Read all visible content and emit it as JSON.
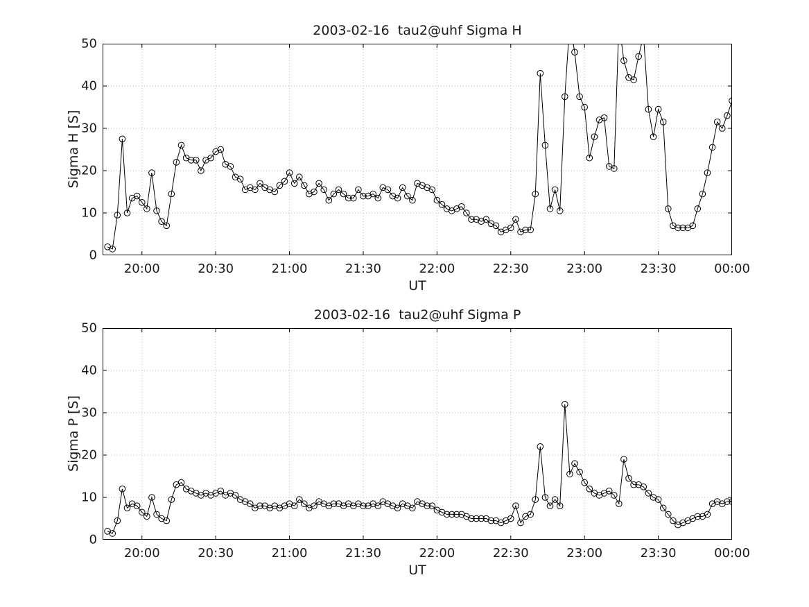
{
  "page": {
    "background": "#ffffff"
  },
  "chart_data": [
    {
      "type": "line",
      "title": "2003-02-16  tau2@uhf Sigma H",
      "xlabel": "UT",
      "ylabel": "Sigma H [S]",
      "ylim": [
        0,
        50
      ],
      "yticks": [
        0,
        10,
        20,
        30,
        40,
        50
      ],
      "xlim": [
        "19:44",
        "24:00"
      ],
      "xticks": [
        "20:00",
        "20:30",
        "21:00",
        "21:30",
        "22:00",
        "22:30",
        "23:00",
        "23:30",
        "00:00"
      ],
      "x_start": "19:46",
      "x_step_min": 2,
      "grid": true,
      "legend": "none",
      "line_color": "#000000",
      "marker": "open-circle",
      "values": [
        2,
        1.5,
        9.5,
        27.5,
        10,
        13.5,
        14,
        12.5,
        11,
        19.5,
        10.5,
        8,
        7,
        14.5,
        22,
        26,
        23,
        22.5,
        22.5,
        20,
        22.5,
        23,
        24.5,
        25,
        21.5,
        21,
        18.5,
        18,
        15.5,
        16,
        15.5,
        17,
        16,
        15.5,
        15,
        16.5,
        17.5,
        19.5,
        17,
        18.5,
        16.5,
        14.5,
        15,
        17,
        15.5,
        13,
        14.5,
        15.5,
        14.5,
        13.5,
        13.5,
        15.5,
        14,
        14,
        14.5,
        13.5,
        16,
        15.5,
        14,
        13.5,
        16,
        14,
        13,
        17,
        16.5,
        16,
        15.5,
        13,
        12,
        11,
        10.5,
        11,
        11.5,
        10,
        8.5,
        8.5,
        8,
        8.5,
        7.5,
        7,
        5.5,
        6,
        6.5,
        8.5,
        5.5,
        6,
        6,
        14.5,
        43,
        26,
        11,
        15.5,
        10.5,
        37.5,
        55,
        48,
        37.5,
        35,
        23,
        28,
        32,
        32.5,
        21,
        20.5,
        55,
        46,
        42,
        41.5,
        47,
        52,
        34.5,
        28,
        34.5,
        31.5,
        11,
        7,
        6.5,
        6.5,
        6.5,
        7,
        11,
        14.5,
        19.5,
        25.5,
        31.5,
        30,
        33,
        36.5
      ]
    },
    {
      "type": "line",
      "title": "2003-02-16  tau2@uhf Sigma P",
      "xlabel": "UT",
      "ylabel": "Sigma P [S]",
      "ylim": [
        0,
        50
      ],
      "yticks": [
        0,
        10,
        20,
        30,
        40,
        50
      ],
      "xlim": [
        "19:44",
        "24:00"
      ],
      "xticks": [
        "20:00",
        "20:30",
        "21:00",
        "21:30",
        "22:00",
        "22:30",
        "23:00",
        "23:30",
        "00:00"
      ],
      "x_start": "19:46",
      "x_step_min": 2,
      "grid": true,
      "legend": "none",
      "line_color": "#000000",
      "marker": "open-circle",
      "values": [
        2,
        1.5,
        4.5,
        12,
        7.5,
        8.5,
        8,
        6.5,
        5.5,
        10,
        6,
        5,
        4.5,
        9.5,
        13,
        13.5,
        12,
        11.5,
        11,
        10.5,
        11,
        10.5,
        11,
        11.5,
        10.5,
        11,
        10.5,
        9.5,
        9,
        8.5,
        7.5,
        8,
        8,
        7.5,
        8,
        7.5,
        8,
        8.5,
        8,
        9.5,
        8.5,
        7.5,
        8,
        9,
        8.5,
        8,
        8.5,
        8.5,
        8,
        8.5,
        8,
        8.5,
        8,
        8,
        8.5,
        8,
        9,
        8.5,
        8,
        7.5,
        8.5,
        8,
        7.5,
        9,
        8.5,
        8,
        8,
        7,
        6.5,
        6,
        6,
        6,
        6,
        5.5,
        5,
        5,
        5,
        5,
        4.5,
        4.5,
        4,
        4.5,
        5,
        8,
        4,
        5.5,
        6,
        9.5,
        22,
        10,
        8,
        9.5,
        8,
        32,
        15.5,
        18,
        16,
        13.5,
        12,
        11,
        10.5,
        11,
        11.5,
        10.5,
        8.5,
        19,
        14.5,
        13,
        13,
        12.5,
        11,
        10,
        9.5,
        7.5,
        6,
        4.5,
        3.5,
        4,
        4.5,
        5,
        5.5,
        5.5,
        6,
        8.5,
        9,
        8.5,
        9,
        9
      ]
    }
  ],
  "style": {
    "grid_color": "#bdbdbd",
    "axis_color": "#000000",
    "text_color": "#1a1a1a"
  }
}
